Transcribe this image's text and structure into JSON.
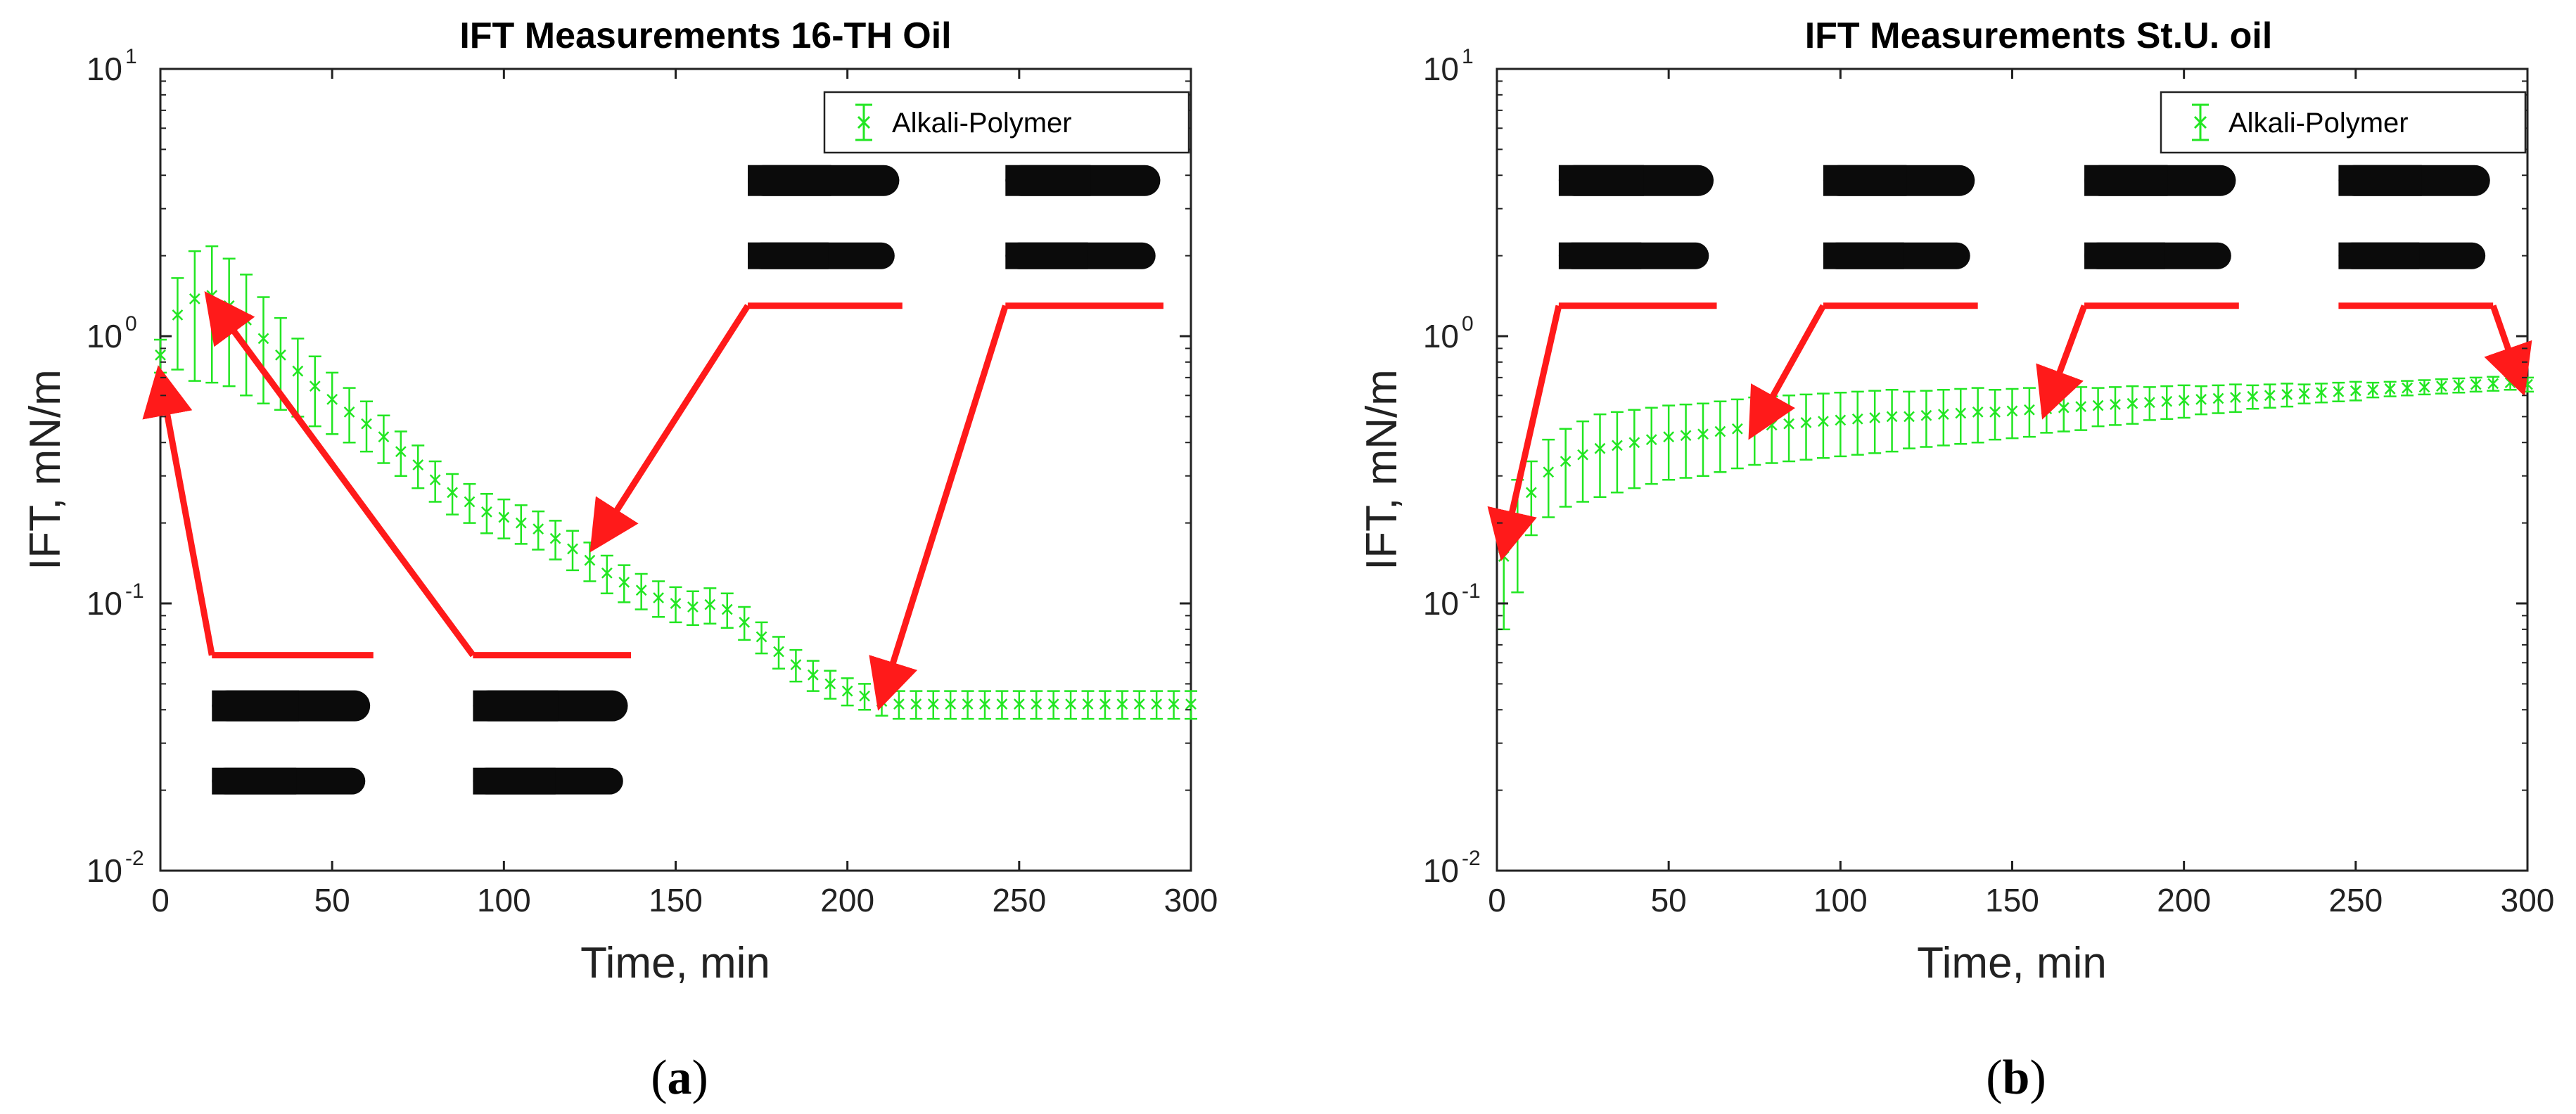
{
  "figure": {
    "colors": {
      "series": "#22e622",
      "arrow": "#ff1a1a",
      "axes": "#222222",
      "droplet": "#0b0b0b"
    }
  },
  "chart_data": [
    {
      "type": "scatter",
      "title": "IFT Measurements 16-TH Oil",
      "xlabel": "Time, min",
      "ylabel": "IFT, mN/m",
      "xlim": [
        0,
        300
      ],
      "ylim": [
        0.01,
        10
      ],
      "yscale": "log",
      "xticks": [
        "0",
        "50",
        "100",
        "150",
        "200",
        "250",
        "300"
      ],
      "yticks": [
        {
          "base": "10",
          "exp": "-2"
        },
        {
          "base": "10",
          "exp": "-1"
        },
        {
          "base": "10",
          "exp": "0"
        },
        {
          "base": "10",
          "exp": "1"
        }
      ],
      "legend": {
        "label": "Alkali-Polymer",
        "placement": "top-right"
      },
      "panel_label": {
        "open": "(",
        "letter": "a",
        "close": ")"
      },
      "series": [
        {
          "name": "Alkali-Polymer",
          "x": [
            0,
            5,
            10,
            15,
            20,
            25,
            30,
            35,
            40,
            45,
            50,
            55,
            60,
            65,
            70,
            75,
            80,
            85,
            90,
            95,
            100,
            105,
            110,
            115,
            120,
            125,
            130,
            135,
            140,
            145,
            150,
            155,
            160,
            165,
            170,
            175,
            180,
            185,
            190,
            195,
            200,
            205,
            210,
            215,
            220,
            225,
            230,
            235,
            240,
            245,
            250,
            255,
            260,
            265,
            270,
            275,
            280,
            285,
            290,
            295,
            300
          ],
          "y": [
            0.85,
            1.2,
            1.38,
            1.42,
            1.3,
            1.15,
            0.98,
            0.85,
            0.74,
            0.65,
            0.58,
            0.52,
            0.47,
            0.42,
            0.37,
            0.33,
            0.29,
            0.26,
            0.24,
            0.22,
            0.21,
            0.2,
            0.19,
            0.175,
            0.16,
            0.145,
            0.13,
            0.12,
            0.112,
            0.105,
            0.1,
            0.097,
            0.099,
            0.095,
            0.085,
            0.075,
            0.066,
            0.059,
            0.054,
            0.05,
            0.047,
            0.045,
            0.043,
            0.042,
            0.042,
            0.042,
            0.042,
            0.042,
            0.042,
            0.042,
            0.042,
            0.042,
            0.042,
            0.042,
            0.042,
            0.042,
            0.042,
            0.042,
            0.042,
            0.042,
            0.042
          ],
          "err": [
            0.12,
            0.45,
            0.7,
            0.75,
            0.65,
            0.55,
            0.42,
            0.32,
            0.24,
            0.19,
            0.15,
            0.12,
            0.1,
            0.085,
            0.07,
            0.06,
            0.05,
            0.045,
            0.04,
            0.037,
            0.035,
            0.033,
            0.031,
            0.029,
            0.027,
            0.024,
            0.021,
            0.019,
            0.017,
            0.016,
            0.015,
            0.014,
            0.015,
            0.014,
            0.012,
            0.01,
            0.009,
            0.008,
            0.007,
            0.006,
            0.0055,
            0.005,
            0.005,
            0.005,
            0.005,
            0.005,
            0.005,
            0.005,
            0.005,
            0.005,
            0.005,
            0.005,
            0.005,
            0.005,
            0.005,
            0.005,
            0.005,
            0.005,
            0.005,
            0.005,
            0.005
          ]
        }
      ],
      "annotations": [
        {
          "target": [
            0,
            0.7
          ],
          "anchor": [
            15,
            0.064
          ],
          "shelf_end": 62
        },
        {
          "target": [
            15,
            1.35
          ],
          "anchor": [
            91,
            0.064
          ],
          "shelf_end": 137
        },
        {
          "target": [
            127,
            0.17
          ],
          "anchor": [
            171,
            1.3
          ],
          "shelf_end": 216
        },
        {
          "target": [
            210,
            0.044
          ],
          "anchor": [
            246,
            1.3
          ],
          "shelf_end": 292
        }
      ]
    },
    {
      "type": "scatter",
      "title": "IFT Measurements St.U. oil",
      "xlabel": "Time, min",
      "ylabel": "IFT, mN/m",
      "xlim": [
        0,
        300
      ],
      "ylim": [
        0.01,
        10
      ],
      "yscale": "log",
      "xticks": [
        "0",
        "50",
        "100",
        "150",
        "200",
        "250",
        "300"
      ],
      "yticks": [
        {
          "base": "10",
          "exp": "-2"
        },
        {
          "base": "10",
          "exp": "-1"
        },
        {
          "base": "10",
          "exp": "0"
        },
        {
          "base": "10",
          "exp": "1"
        }
      ],
      "legend": {
        "label": "Alkali-Polymer",
        "placement": "top-right"
      },
      "panel_label": {
        "open": "(",
        "letter": "b",
        "close": ")"
      },
      "series": [
        {
          "name": "Alkali-Polymer",
          "x": [
            2,
            6,
            10,
            15,
            20,
            25,
            30,
            35,
            40,
            45,
            50,
            55,
            60,
            65,
            70,
            75,
            80,
            85,
            90,
            95,
            100,
            105,
            110,
            115,
            120,
            125,
            130,
            135,
            140,
            145,
            150,
            155,
            160,
            165,
            170,
            175,
            180,
            185,
            190,
            195,
            200,
            205,
            210,
            215,
            220,
            225,
            230,
            235,
            240,
            245,
            250,
            255,
            260,
            265,
            270,
            275,
            280,
            285,
            290,
            295,
            300
          ],
          "y": [
            0.15,
            0.2,
            0.26,
            0.31,
            0.34,
            0.36,
            0.38,
            0.39,
            0.4,
            0.41,
            0.42,
            0.425,
            0.43,
            0.44,
            0.45,
            0.46,
            0.465,
            0.47,
            0.475,
            0.48,
            0.485,
            0.49,
            0.495,
            0.5,
            0.5,
            0.505,
            0.51,
            0.515,
            0.52,
            0.52,
            0.525,
            0.53,
            0.535,
            0.54,
            0.545,
            0.55,
            0.555,
            0.56,
            0.565,
            0.57,
            0.575,
            0.58,
            0.585,
            0.59,
            0.595,
            0.6,
            0.605,
            0.61,
            0.615,
            0.62,
            0.625,
            0.63,
            0.635,
            0.64,
            0.645,
            0.65,
            0.655,
            0.66,
            0.665,
            0.67,
            0.66
          ],
          "err": [
            0.07,
            0.09,
            0.08,
            0.1,
            0.11,
            0.12,
            0.13,
            0.13,
            0.13,
            0.13,
            0.13,
            0.13,
            0.13,
            0.13,
            0.13,
            0.13,
            0.13,
            0.13,
            0.13,
            0.13,
            0.13,
            0.13,
            0.13,
            0.13,
            0.12,
            0.12,
            0.12,
            0.12,
            0.12,
            0.11,
            0.11,
            0.11,
            0.1,
            0.1,
            0.1,
            0.09,
            0.09,
            0.09,
            0.08,
            0.08,
            0.08,
            0.07,
            0.07,
            0.07,
            0.06,
            0.06,
            0.06,
            0.05,
            0.05,
            0.05,
            0.05,
            0.04,
            0.04,
            0.04,
            0.04,
            0.04,
            0.04,
            0.04,
            0.04,
            0.04,
            0.04
          ]
        }
      ],
      "annotations": [
        {
          "target": [
            2,
            0.16
          ],
          "anchor": [
            18,
            1.3
          ],
          "shelf_end": 64
        },
        {
          "target": [
            75,
            0.45
          ],
          "anchor": [
            95,
            1.3
          ],
          "shelf_end": 140
        },
        {
          "target": [
            160,
            0.54
          ],
          "anchor": [
            171,
            1.3
          ],
          "shelf_end": 216
        },
        {
          "target": [
            298,
            0.66
          ],
          "anchor": [
            290,
            1.3
          ],
          "shelf_end": 245
        }
      ]
    }
  ]
}
